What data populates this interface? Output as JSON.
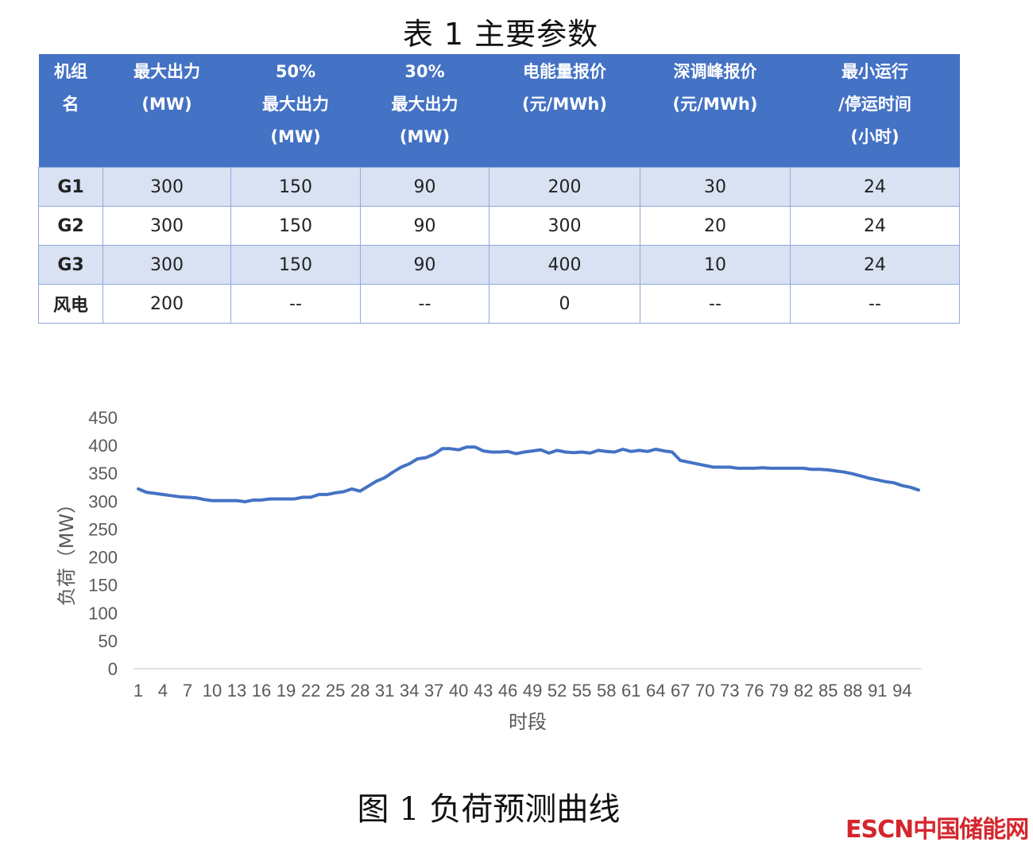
{
  "table": {
    "title": "表 1  主要参数",
    "headers": [
      [
        "机组",
        "名"
      ],
      [
        "最大出力",
        "(MW)"
      ],
      [
        "50%",
        "最大出力",
        "(MW)"
      ],
      [
        "30%",
        "最大出力",
        "(MW)"
      ],
      [
        "电能量报价",
        "(元/MWh)"
      ],
      [
        "深调峰报价",
        "(元/MWh)"
      ],
      [
        "最小运行",
        "/停运时间",
        "(小时)"
      ]
    ],
    "rows": [
      [
        "G1",
        "300",
        "150",
        "90",
        "200",
        "30",
        "24"
      ],
      [
        "G2",
        "300",
        "150",
        "90",
        "300",
        "20",
        "24"
      ],
      [
        "G3",
        "300",
        "150",
        "90",
        "400",
        "10",
        "24"
      ],
      [
        "风电",
        "200",
        "--",
        "--",
        "0",
        "--",
        "--"
      ]
    ]
  },
  "chart_data": {
    "type": "line",
    "title": "",
    "xlabel": "时段",
    "ylabel": "负荷（MW）",
    "ylim": [
      0,
      450
    ],
    "yticks": [
      0,
      50,
      100,
      150,
      200,
      250,
      300,
      350,
      400,
      450
    ],
    "x": [
      1,
      2,
      3,
      4,
      5,
      6,
      7,
      8,
      9,
      10,
      11,
      12,
      13,
      14,
      15,
      16,
      17,
      18,
      19,
      20,
      21,
      22,
      23,
      24,
      25,
      26,
      27,
      28,
      29,
      30,
      31,
      32,
      33,
      34,
      35,
      36,
      37,
      38,
      39,
      40,
      41,
      42,
      43,
      44,
      45,
      46,
      47,
      48,
      49,
      50,
      51,
      52,
      53,
      54,
      55,
      56,
      57,
      58,
      59,
      60,
      61,
      62,
      63,
      64,
      65,
      66,
      67,
      68,
      69,
      70,
      71,
      72,
      73,
      74,
      75,
      76,
      77,
      78,
      79,
      80,
      81,
      82,
      83,
      84,
      85,
      86,
      87,
      88,
      89,
      90,
      91,
      92,
      93,
      94,
      95,
      96
    ],
    "xtick_labels": [
      "1",
      "4",
      "7",
      "10",
      "13",
      "16",
      "19",
      "22",
      "25",
      "28",
      "31",
      "34",
      "37",
      "40",
      "43",
      "46",
      "49",
      "52",
      "55",
      "58",
      "61",
      "64",
      "67",
      "70",
      "73",
      "76",
      "79",
      "82",
      "85",
      "88",
      "91",
      "94"
    ],
    "grid": false,
    "color": "#4472c4",
    "series": [
      {
        "values": [
          322,
          316,
          314,
          312,
          310,
          308,
          307,
          306,
          303,
          301,
          301,
          301,
          301,
          299,
          302,
          302,
          304,
          304,
          304,
          304,
          307,
          307,
          312,
          312,
          315,
          317,
          322,
          318,
          327,
          336,
          342,
          352,
          361,
          367,
          376,
          378,
          384,
          394,
          394,
          392,
          397,
          397,
          390,
          388,
          388,
          389,
          385,
          388,
          390,
          392,
          386,
          391,
          388,
          387,
          388,
          386,
          391,
          389,
          388,
          393,
          389,
          391,
          389,
          393,
          390,
          388,
          373,
          370,
          367,
          364,
          361,
          361,
          361,
          359,
          359,
          359,
          360,
          359,
          359,
          359,
          359,
          359,
          357,
          357,
          356,
          354,
          352,
          349,
          345,
          341,
          338,
          335,
          333,
          328,
          325,
          320
        ]
      }
    ]
  },
  "figure": {
    "caption": "图 1  负荷预测曲线"
  },
  "watermark": {
    "text": "ESCN中国储能网",
    "color": "#d4262d"
  }
}
